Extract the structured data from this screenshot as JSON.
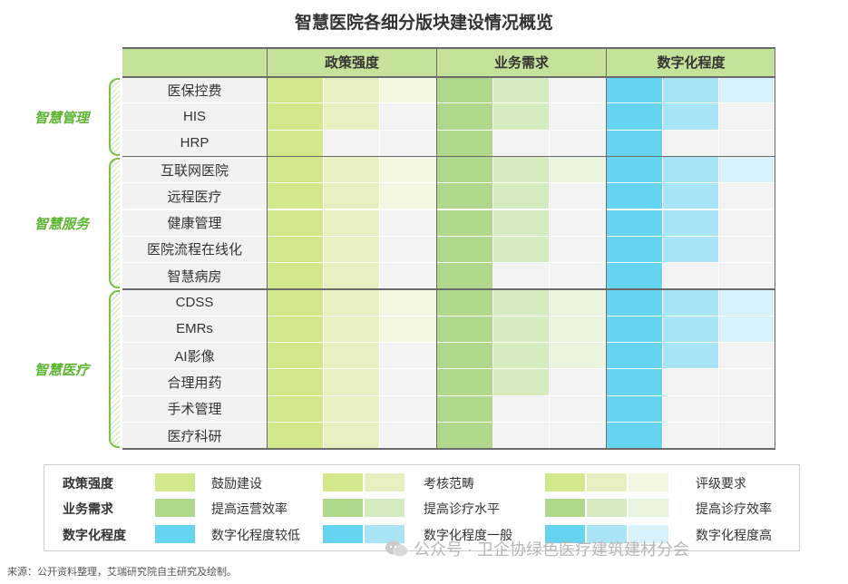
{
  "title": "智慧医院各细分版块建设情况概览",
  "columns": [
    "政策强度",
    "业务需求",
    "数字化程度"
  ],
  "groups": [
    {
      "name": "智慧管理",
      "rows": [
        "医保控费",
        "HIS",
        "HRP"
      ]
    },
    {
      "name": "智慧服务",
      "rows": [
        "互联网医院",
        "远程医疗",
        "健康管理",
        "医院流程在线化",
        "智慧病房"
      ]
    },
    {
      "name": "智慧医疗",
      "rows": [
        "CDSS",
        "EMRs",
        "AI影像",
        "合理用药",
        "手术管理",
        "医疗科研"
      ]
    }
  ],
  "colors": {
    "header": "#c5e29b",
    "policy": [
      "#d2e88a",
      "#e6f1c2",
      "#f1f7e0"
    ],
    "demand": [
      "#afd88c",
      "#d5ebc0",
      "#eaf5e0"
    ],
    "digital": [
      "#64d4f0",
      "#a8e4f6",
      "#d8f2fb"
    ],
    "empty": "#f3f3f3"
  },
  "chart_data": {
    "type": "table",
    "title": "智慧医院各细分版块建设情况概览",
    "columns": [
      "政策强度",
      "业务需求",
      "数字化程度"
    ],
    "scale": {
      "政策强度": {
        "1": "鼓励建设",
        "2": "考核范畴",
        "3": "评级要求"
      },
      "业务需求": {
        "1": "提高运营效率",
        "2": "提高诊疗水平",
        "3": "提高诊疗效率"
      },
      "数字化程度": {
        "1": "数字化程度较低",
        "2": "数字化程度一般",
        "3": "数字化程度高"
      }
    },
    "rows": [
      {
        "group": "智慧管理",
        "name": "医保控费",
        "values": [
          3,
          2,
          3
        ]
      },
      {
        "group": "智慧管理",
        "name": "HIS",
        "values": [
          2,
          2,
          2
        ]
      },
      {
        "group": "智慧管理",
        "name": "HRP",
        "values": [
          1,
          1,
          1
        ]
      },
      {
        "group": "智慧服务",
        "name": "互联网医院",
        "values": [
          3,
          3,
          3
        ]
      },
      {
        "group": "智慧服务",
        "name": "远程医疗",
        "values": [
          3,
          2,
          2
        ]
      },
      {
        "group": "智慧服务",
        "name": "健康管理",
        "values": [
          2,
          2,
          2
        ]
      },
      {
        "group": "智慧服务",
        "name": "医院流程在线化",
        "values": [
          2,
          2,
          2
        ]
      },
      {
        "group": "智慧服务",
        "name": "智慧病房",
        "values": [
          2,
          1,
          1
        ]
      },
      {
        "group": "智慧医疗",
        "name": "CDSS",
        "values": [
          3,
          3,
          3
        ]
      },
      {
        "group": "智慧医疗",
        "name": "EMRs",
        "values": [
          3,
          3,
          3
        ]
      },
      {
        "group": "智慧医疗",
        "name": "AI影像",
        "values": [
          2,
          3,
          2
        ]
      },
      {
        "group": "智慧医疗",
        "name": "合理用药",
        "values": [
          2,
          2,
          1
        ]
      },
      {
        "group": "智慧医疗",
        "name": "手术管理",
        "values": [
          2,
          1,
          1
        ]
      },
      {
        "group": "智慧医疗",
        "name": "医疗科研",
        "values": [
          2,
          1,
          1
        ]
      }
    ]
  },
  "legend": [
    {
      "category": "政策强度",
      "labels": [
        "鼓励建设",
        "考核范畴",
        "评级要求"
      ]
    },
    {
      "category": "业务需求",
      "labels": [
        "提高运营效率",
        "提高诊疗水平",
        "提高诊疗效率"
      ]
    },
    {
      "category": "数字化程度",
      "labels": [
        "数字化程度较低",
        "数字化程度一般",
        "数字化程度高"
      ]
    }
  ],
  "source": "来源：公开资料整理，艾瑞研究院自主研究及绘制。",
  "watermark": "公众号 · 卫企协绿色医疗建筑建材分会"
}
